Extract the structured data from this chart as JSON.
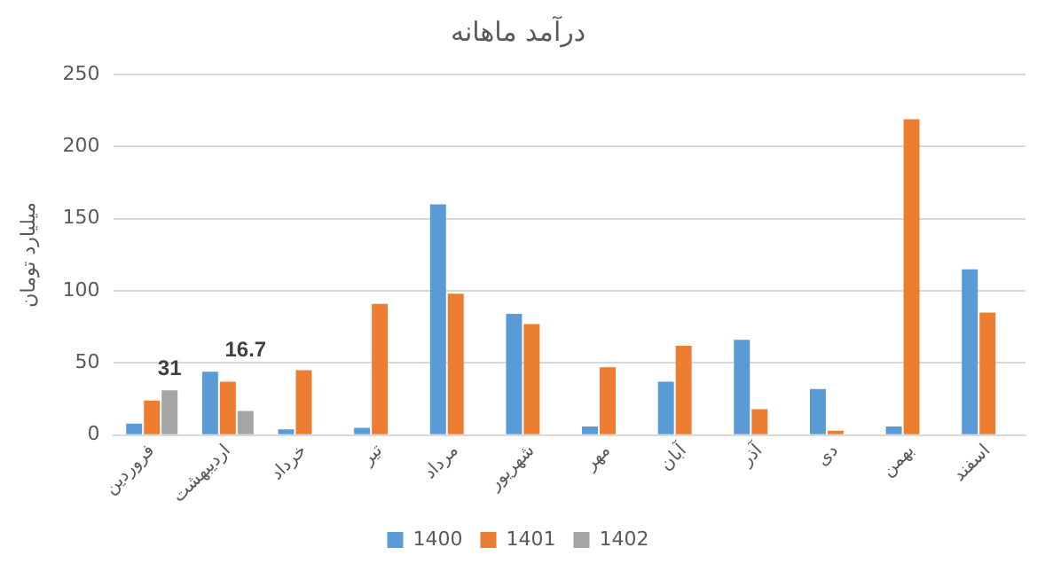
{
  "chart_data": {
    "type": "bar",
    "title": "درآمد ماهانه",
    "ylabel": "میلیارد تومان",
    "categories": [
      "فروردین",
      "اردیبهشت",
      "خرداد",
      "تیر",
      "مرداد",
      "شهریور",
      "مهر",
      "آبان",
      "آذر",
      "دی",
      "بهمن",
      "اسفند"
    ],
    "series": [
      {
        "name": "1400",
        "color": "#5b9bd5",
        "values": [
          8,
          44,
          4,
          5,
          160,
          84,
          6,
          37,
          66,
          32,
          6,
          115
        ]
      },
      {
        "name": "1401",
        "color": "#ed7d31",
        "values": [
          24,
          37,
          45,
          91,
          98,
          77,
          47,
          62,
          18,
          3,
          219,
          85
        ]
      },
      {
        "name": "1402",
        "color": "#a5a5a5",
        "values": [
          31,
          16.7,
          null,
          null,
          null,
          null,
          null,
          null,
          null,
          null,
          null,
          null
        ],
        "value_labels": [
          "31",
          "16.7",
          null,
          null,
          null,
          null,
          null,
          null,
          null,
          null,
          null,
          null
        ]
      }
    ],
    "ylim": [
      0,
      250
    ],
    "yticks": [
      0,
      50,
      100,
      150,
      200,
      250
    ],
    "grid": "y",
    "legend": "bottom"
  }
}
